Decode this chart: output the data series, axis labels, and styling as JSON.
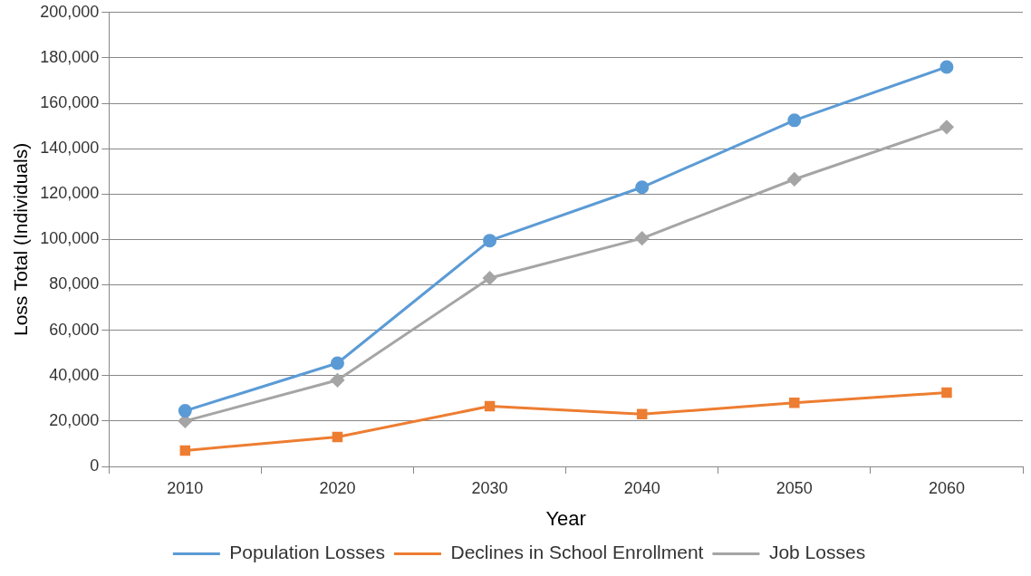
{
  "chart_data": {
    "type": "line",
    "xlabel": "Year",
    "ylabel": "Loss Total (Individuals)",
    "categories": [
      "2010",
      "2020",
      "2030",
      "2040",
      "2050",
      "2060"
    ],
    "series": [
      {
        "name": "Population Losses",
        "color": "#5b9bd5",
        "marker": "circle",
        "values": [
          24500,
          45500,
          99500,
          123000,
          152500,
          176000
        ]
      },
      {
        "name": "Declines in School Enrollment",
        "color": "#ed7d31",
        "marker": "square",
        "values": [
          7000,
          13000,
          26500,
          23000,
          28000,
          32500
        ]
      },
      {
        "name": "Job Losses",
        "color": "#a5a5a5",
        "marker": "diamond",
        "values": [
          20000,
          38000,
          83000,
          100500,
          126500,
          149500
        ]
      }
    ],
    "ylim": [
      0,
      200000
    ],
    "yticks": [
      0,
      {
        "value": 20000,
        "label": "20,000"
      },
      {
        "value": 40000,
        "label": "40,000"
      },
      {
        "value": 60000,
        "label": "60,000"
      },
      {
        "value": 80000,
        "label": "80,000"
      },
      {
        "value": 100000,
        "label": "100,000"
      },
      {
        "value": 120000,
        "label": "120,000"
      },
      {
        "value": 140000,
        "label": "140,000"
      },
      {
        "value": 160000,
        "label": "160,000"
      },
      {
        "value": 180000,
        "label": "180,000"
      },
      {
        "value": 200000,
        "label": "200,000"
      }
    ],
    "grid": "y",
    "legend": "bottom",
    "line_style": "solid"
  }
}
